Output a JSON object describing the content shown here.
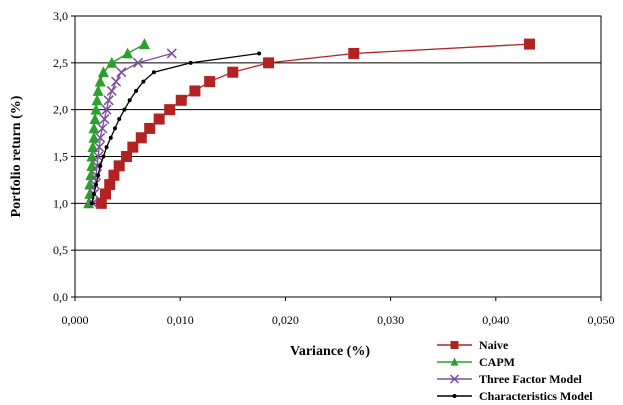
{
  "chart_data": {
    "type": "line",
    "title": "",
    "xlabel": "Variance (%)",
    "ylabel": "Portfolio return (%)",
    "xlim": [
      0,
      0.05
    ],
    "ylim": [
      0,
      3.0
    ],
    "x_ticks": [
      "0,000",
      "0,010",
      "0,020",
      "0,030",
      "0,040",
      "0,050"
    ],
    "y_ticks": [
      "0,0",
      "0,5",
      "1,0",
      "1,5",
      "2,0",
      "2,5",
      "3,0"
    ],
    "grid": "horizontal",
    "legend_position": "bottom-right",
    "series": [
      {
        "name": "Naive",
        "color": "#b22222",
        "marker": "square",
        "points": [
          [
            0.0025,
            1.0
          ],
          [
            0.0029,
            1.1
          ],
          [
            0.0033,
            1.2
          ],
          [
            0.0037,
            1.3
          ],
          [
            0.0042,
            1.4
          ],
          [
            0.0049,
            1.5
          ],
          [
            0.0055,
            1.6
          ],
          [
            0.0063,
            1.7
          ],
          [
            0.0071,
            1.8
          ],
          [
            0.008,
            1.9
          ],
          [
            0.009,
            2.0
          ],
          [
            0.0101,
            2.1
          ],
          [
            0.0114,
            2.2
          ],
          [
            0.0128,
            2.3
          ],
          [
            0.015,
            2.4
          ],
          [
            0.0184,
            2.5
          ],
          [
            0.0265,
            2.6
          ],
          [
            0.0432,
            2.7
          ]
        ]
      },
      {
        "name": "CAPM",
        "color": "#2ca02c",
        "marker": "triangle",
        "points": [
          [
            0.0013,
            1.0
          ],
          [
            0.0014,
            1.1
          ],
          [
            0.0014,
            1.2
          ],
          [
            0.0015,
            1.3
          ],
          [
            0.0016,
            1.4
          ],
          [
            0.0016,
            1.5
          ],
          [
            0.0017,
            1.6
          ],
          [
            0.0018,
            1.7
          ],
          [
            0.0018,
            1.8
          ],
          [
            0.0019,
            1.9
          ],
          [
            0.002,
            2.0
          ],
          [
            0.0021,
            2.1
          ],
          [
            0.0022,
            2.2
          ],
          [
            0.0024,
            2.3
          ],
          [
            0.0027,
            2.4
          ],
          [
            0.0035,
            2.5
          ],
          [
            0.005,
            2.6
          ],
          [
            0.0066,
            2.7
          ]
        ]
      },
      {
        "name": "Three Factor Model",
        "color": "#7a4f9a",
        "marker": "x",
        "points": [
          [
            0.0017,
            1.0
          ],
          [
            0.0018,
            1.1
          ],
          [
            0.0019,
            1.2
          ],
          [
            0.002,
            1.3
          ],
          [
            0.0021,
            1.4
          ],
          [
            0.0022,
            1.5
          ],
          [
            0.0023,
            1.6
          ],
          [
            0.0024,
            1.7
          ],
          [
            0.0026,
            1.8
          ],
          [
            0.0028,
            1.9
          ],
          [
            0.003,
            2.0
          ],
          [
            0.0032,
            2.1
          ],
          [
            0.0035,
            2.2
          ],
          [
            0.0039,
            2.3
          ],
          [
            0.0044,
            2.4
          ],
          [
            0.006,
            2.5
          ],
          [
            0.0092,
            2.6
          ]
        ]
      },
      {
        "name": "Characteristics Model",
        "color": "#000000",
        "marker": "dot",
        "points": [
          [
            0.0016,
            1.0
          ],
          [
            0.0018,
            1.1
          ],
          [
            0.002,
            1.2
          ],
          [
            0.0022,
            1.3
          ],
          [
            0.0024,
            1.4
          ],
          [
            0.0027,
            1.5
          ],
          [
            0.003,
            1.6
          ],
          [
            0.0034,
            1.7
          ],
          [
            0.0038,
            1.8
          ],
          [
            0.0042,
            1.9
          ],
          [
            0.0047,
            2.0
          ],
          [
            0.0052,
            2.1
          ],
          [
            0.0058,
            2.2
          ],
          [
            0.0065,
            2.3
          ],
          [
            0.0075,
            2.4
          ],
          [
            0.011,
            2.5
          ],
          [
            0.0175,
            2.6
          ]
        ]
      }
    ]
  }
}
